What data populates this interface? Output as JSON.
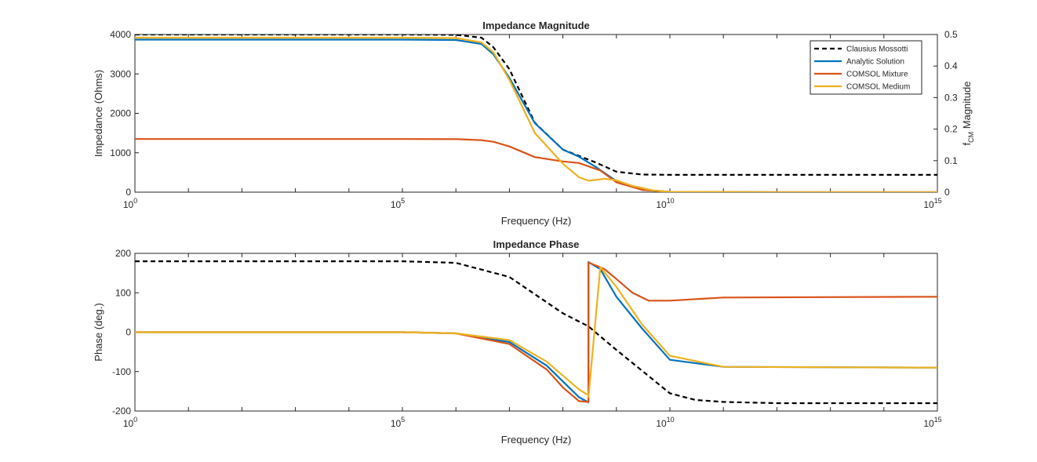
{
  "chart_data": [
    {
      "type": "line",
      "title": "Impedance Magnitude",
      "xlabel": "Frequency (Hz)",
      "ylabel": "Impedance (Ohms)",
      "y2label": "f_CM Magnitude",
      "xscale": "log",
      "xlim": [
        1,
        1000000000000000.0
      ],
      "ylim": [
        0,
        4000
      ],
      "y2lim": [
        0,
        0.5
      ],
      "xtick_labels": [
        {
          "base": "10",
          "exp": "0"
        },
        {
          "base": "10",
          "exp": "5"
        },
        {
          "base": "10",
          "exp": "10"
        },
        {
          "base": "10",
          "exp": "15"
        }
      ],
      "yticks": [
        "0",
        "1000",
        "2000",
        "3000",
        "4000"
      ],
      "y2ticks": [
        "0",
        "0.1",
        "0.2",
        "0.3",
        "0.4",
        "0.5"
      ],
      "legend": "top-right",
      "grid": false,
      "series": [
        {
          "name": "Clausius Mossotti",
          "color": "#000000",
          "dash": true,
          "axis": "right",
          "x": [
            1,
            100000.0,
            1000000.0,
            3000000.0,
            5000000.0,
            10000000.0,
            30000000.0,
            100000000.0,
            200000000.0,
            400000000.0,
            1000000000.0,
            3000000000.0,
            10000000000.0,
            1000000000000.0,
            1000000000000000.0
          ],
          "y": [
            0.5,
            0.5,
            0.499,
            0.49,
            0.46,
            0.39,
            0.22,
            0.135,
            0.115,
            0.095,
            0.065,
            0.056,
            0.055,
            0.055,
            0.055
          ]
        },
        {
          "name": "Analytic Solution",
          "color": "#0072BD",
          "dash": false,
          "axis": "left",
          "x": [
            1,
            100000.0,
            1000000.0,
            3000000.0,
            5000000.0,
            10000000.0,
            30000000.0,
            100000000.0,
            200000000.0,
            400000000.0,
            1000000000.0,
            3000000000.0,
            10000000000.0,
            1000000000000.0,
            1000000000000000.0
          ],
          "y": [
            3870,
            3870,
            3860,
            3760,
            3500,
            2900,
            1750,
            1080,
            900,
            650,
            280,
            60,
            10,
            0,
            0
          ]
        },
        {
          "name": "COMSOL Mixture",
          "color": "#D95319",
          "dash": false,
          "axis": "left",
          "x": [
            1,
            100000.0,
            1000000.0,
            3000000.0,
            5000000.0,
            10000000.0,
            30000000.0,
            100000000.0,
            200000000.0,
            500000000.0,
            1000000000.0,
            3000000000.0,
            10000000000.0,
            1000000000000.0,
            1000000000000000.0
          ],
          "y": [
            1350,
            1350,
            1345,
            1320,
            1280,
            1160,
            890,
            780,
            740,
            550,
            250,
            60,
            5,
            0,
            0
          ]
        },
        {
          "name": "COMSOL Medium",
          "color": "#EDB120",
          "dash": false,
          "axis": "left",
          "x": [
            1,
            100000.0,
            1000000.0,
            3000000.0,
            5000000.0,
            10000000.0,
            30000000.0,
            100000000.0,
            200000000.0,
            300000000.0,
            600000000.0,
            1000000000.0,
            2000000000.0,
            5000000000.0,
            10000000000.0,
            1000000000000.0,
            1000000000000000.0
          ],
          "y": [
            3920,
            3920,
            3910,
            3800,
            3550,
            2850,
            1500,
            720,
            380,
            290,
            340,
            300,
            160,
            40,
            10,
            0,
            0
          ]
        }
      ]
    },
    {
      "type": "line",
      "title": "Impedance Phase",
      "xlabel": "Frequency (Hz)",
      "ylabel": "Phase (deg.)",
      "xscale": "log",
      "xlim": [
        1,
        1000000000000000.0
      ],
      "ylim": [
        -200,
        200
      ],
      "xtick_labels": [
        {
          "base": "10",
          "exp": "0"
        },
        {
          "base": "10",
          "exp": "5"
        },
        {
          "base": "10",
          "exp": "10"
        },
        {
          "base": "10",
          "exp": "15"
        }
      ],
      "yticks": [
        "-200",
        "-100",
        "0",
        "100",
        "200"
      ],
      "grid": false,
      "series": [
        {
          "name": "Clausius Mossotti",
          "color": "#000000",
          "dash": true,
          "x": [
            1,
            100000.0,
            1000000.0,
            10000000.0,
            100000000.0,
            300000000.0,
            1000000000.0,
            10000000000.0,
            30000000000.0,
            100000000000.0,
            1000000000000.0,
            1000000000000000.0
          ],
          "y": [
            180,
            180,
            176,
            140,
            48,
            15,
            -45,
            -155,
            -172,
            -177,
            -180,
            -180
          ]
        },
        {
          "name": "Analytic Solution",
          "color": "#0072BD",
          "dash": false,
          "x": [
            1,
            100000.0,
            1000000.0,
            10000000.0,
            50000000.0,
            100000000.0,
            200000000.0,
            300000000.0,
            301000000.0,
            500000000.0,
            1000000000.0,
            3000000000.0,
            10000000000.0,
            100000000000.0,
            1000000000000000.0
          ],
          "y": [
            0,
            0,
            -3,
            -25,
            -85,
            -125,
            -165,
            -178,
            178,
            160,
            90,
            10,
            -70,
            -88,
            -90
          ]
        },
        {
          "name": "COMSOL Mixture",
          "color": "#D95319",
          "dash": false,
          "x": [
            1,
            100000.0,
            1000000.0,
            10000000.0,
            50000000.0,
            100000000.0,
            200000000.0,
            300000000.0,
            301000000.0,
            600000000.0,
            1000000000.0,
            2000000000.0,
            4000000000.0,
            10000000000.0,
            100000000000.0,
            1000000000000000.0
          ],
          "y": [
            0,
            0,
            -3,
            -30,
            -95,
            -140,
            -175,
            -177,
            177,
            160,
            135,
            100,
            80,
            80,
            88,
            90
          ]
        },
        {
          "name": "COMSOL Medium",
          "color": "#EDB120",
          "dash": false,
          "x": [
            1,
            100000.0,
            1000000.0,
            10000000.0,
            50000000.0,
            100000000.0,
            200000000.0,
            300000000.0,
            301000000.0,
            500000000.0,
            1000000000.0,
            3000000000.0,
            10000000000.0,
            100000000000.0,
            1000000000000000.0
          ],
          "y": [
            0,
            0,
            -3,
            -20,
            -75,
            -110,
            -145,
            -160,
            -165,
            165,
            115,
            20,
            -60,
            -88,
            -90
          ]
        }
      ]
    }
  ]
}
